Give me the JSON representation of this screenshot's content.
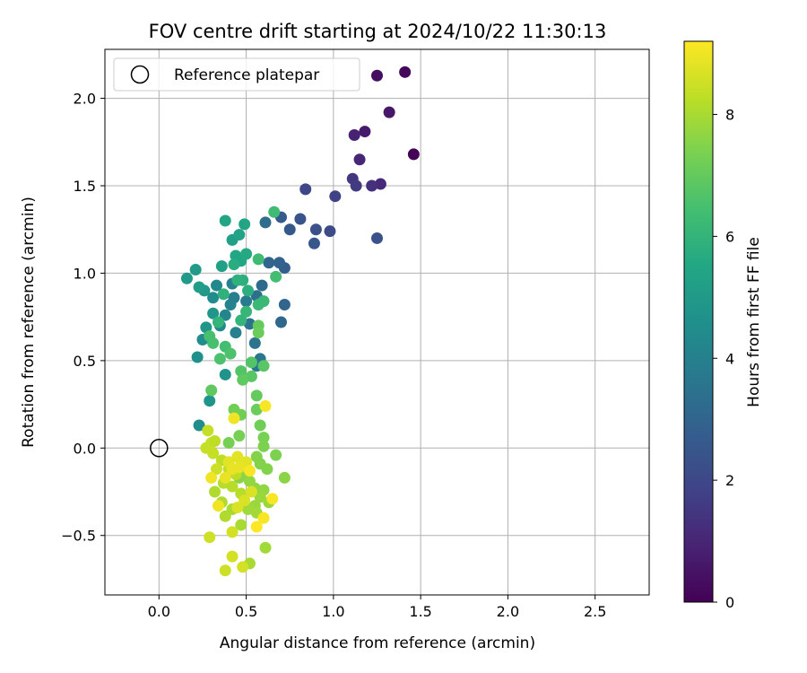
{
  "chart_data": {
    "type": "scatter",
    "title": "FOV centre drift starting at 2024/10/22 11:30:13",
    "xlabel": "Angular distance from reference (arcmin)",
    "ylabel": "Rotation from reference (arcmin)",
    "xlim": [
      -0.31,
      2.81
    ],
    "ylim": [
      -0.84,
      2.28
    ],
    "xticks": [
      0.0,
      0.5,
      1.0,
      1.5,
      2.0,
      2.5
    ],
    "xtick_labels": [
      "0.0",
      "0.5",
      "1.0",
      "1.5",
      "2.0",
      "2.5"
    ],
    "yticks": [
      -0.5,
      0.0,
      0.5,
      1.0,
      1.5,
      2.0
    ],
    "ytick_labels": [
      "−0.5",
      "0.0",
      "0.5",
      "1.0",
      "1.5",
      "2.0"
    ],
    "grid": true,
    "legend": {
      "placement": "top-left",
      "entries": [
        "Reference platepar"
      ]
    },
    "reference_point": {
      "x": 0.0,
      "y": 0.0
    },
    "colorbar": {
      "label": "Hours from first FF file",
      "range": [
        0,
        9.2
      ],
      "ticks": [
        0,
        2,
        4,
        6,
        8
      ],
      "tick_labels": [
        "0",
        "2",
        "4",
        "6",
        "8"
      ],
      "colormap": "viridis"
    },
    "points": [
      {
        "x": 1.46,
        "y": 1.68,
        "c": 0.1
      },
      {
        "x": 1.41,
        "y": 2.15,
        "c": 0.15
      },
      {
        "x": 1.25,
        "y": 2.13,
        "c": 0.35
      },
      {
        "x": 1.32,
        "y": 1.92,
        "c": 0.6
      },
      {
        "x": 1.18,
        "y": 1.81,
        "c": 0.7
      },
      {
        "x": 1.12,
        "y": 1.79,
        "c": 0.9
      },
      {
        "x": 1.15,
        "y": 1.65,
        "c": 1.0
      },
      {
        "x": 1.27,
        "y": 1.51,
        "c": 1.1
      },
      {
        "x": 1.22,
        "y": 1.5,
        "c": 1.3
      },
      {
        "x": 1.11,
        "y": 1.54,
        "c": 1.5
      },
      {
        "x": 1.13,
        "y": 1.5,
        "c": 1.6
      },
      {
        "x": 1.01,
        "y": 1.44,
        "c": 1.8
      },
      {
        "x": 0.84,
        "y": 1.48,
        "c": 2.0
      },
      {
        "x": 0.98,
        "y": 1.24,
        "c": 2.1
      },
      {
        "x": 1.25,
        "y": 1.2,
        "c": 2.3
      },
      {
        "x": 0.9,
        "y": 1.25,
        "c": 2.3
      },
      {
        "x": 0.81,
        "y": 1.31,
        "c": 2.4
      },
      {
        "x": 0.89,
        "y": 1.17,
        "c": 2.5
      },
      {
        "x": 0.75,
        "y": 1.25,
        "c": 2.6
      },
      {
        "x": 0.7,
        "y": 1.32,
        "c": 2.7
      },
      {
        "x": 0.72,
        "y": 1.03,
        "c": 2.8
      },
      {
        "x": 0.69,
        "y": 1.06,
        "c": 2.9
      },
      {
        "x": 0.63,
        "y": 1.06,
        "c": 3.0
      },
      {
        "x": 0.72,
        "y": 0.82,
        "c": 3.0
      },
      {
        "x": 0.7,
        "y": 0.72,
        "c": 3.1
      },
      {
        "x": 0.61,
        "y": 1.29,
        "c": 3.3
      },
      {
        "x": 0.59,
        "y": 0.93,
        "c": 3.2
      },
      {
        "x": 0.56,
        "y": 0.87,
        "c": 3.4
      },
      {
        "x": 0.55,
        "y": 0.6,
        "c": 3.5
      },
      {
        "x": 0.52,
        "y": 0.71,
        "c": 3.5
      },
      {
        "x": 0.58,
        "y": 0.51,
        "c": 3.6
      },
      {
        "x": 0.56,
        "y": 0.47,
        "c": 3.7
      },
      {
        "x": 0.5,
        "y": 0.84,
        "c": 3.8
      },
      {
        "x": 0.43,
        "y": 0.86,
        "c": 3.9
      },
      {
        "x": 0.42,
        "y": 0.94,
        "c": 4.0
      },
      {
        "x": 0.44,
        "y": 0.66,
        "c": 4.0
      },
      {
        "x": 0.41,
        "y": 0.82,
        "c": 4.1
      },
      {
        "x": 0.38,
        "y": 0.76,
        "c": 4.2
      },
      {
        "x": 0.35,
        "y": 0.7,
        "c": 4.3
      },
      {
        "x": 0.33,
        "y": 0.93,
        "c": 4.3
      },
      {
        "x": 0.31,
        "y": 0.86,
        "c": 4.4
      },
      {
        "x": 0.28,
        "y": 0.63,
        "c": 4.5
      },
      {
        "x": 0.25,
        "y": 0.62,
        "c": 4.5
      },
      {
        "x": 0.22,
        "y": 0.52,
        "c": 4.6
      },
      {
        "x": 0.23,
        "y": 0.13,
        "c": 4.5
      },
      {
        "x": 0.29,
        "y": 0.27,
        "c": 4.7
      },
      {
        "x": 0.38,
        "y": 0.42,
        "c": 4.7
      },
      {
        "x": 0.27,
        "y": 0.69,
        "c": 4.8
      },
      {
        "x": 0.31,
        "y": 0.77,
        "c": 4.8
      },
      {
        "x": 0.26,
        "y": 0.9,
        "c": 4.9
      },
      {
        "x": 0.21,
        "y": 1.02,
        "c": 5.0
      },
      {
        "x": 0.16,
        "y": 0.97,
        "c": 5.0
      },
      {
        "x": 0.23,
        "y": 0.92,
        "c": 5.1
      },
      {
        "x": 0.36,
        "y": 1.04,
        "c": 5.2
      },
      {
        "x": 0.42,
        "y": 1.19,
        "c": 5.2
      },
      {
        "x": 0.46,
        "y": 1.22,
        "c": 5.3
      },
      {
        "x": 0.38,
        "y": 1.3,
        "c": 5.4
      },
      {
        "x": 0.49,
        "y": 1.28,
        "c": 5.4
      },
      {
        "x": 0.44,
        "y": 1.1,
        "c": 5.5
      },
      {
        "x": 0.47,
        "y": 1.07,
        "c": 5.5
      },
      {
        "x": 0.5,
        "y": 1.11,
        "c": 5.6
      },
      {
        "x": 0.43,
        "y": 1.05,
        "c": 5.7
      },
      {
        "x": 0.48,
        "y": 0.96,
        "c": 5.8
      },
      {
        "x": 0.51,
        "y": 0.9,
        "c": 5.8
      },
      {
        "x": 0.45,
        "y": 0.96,
        "c": 5.9
      },
      {
        "x": 0.37,
        "y": 0.88,
        "c": 5.9
      },
      {
        "x": 0.34,
        "y": 0.72,
        "c": 6.0
      },
      {
        "x": 0.47,
        "y": 0.73,
        "c": 6.0
      },
      {
        "x": 0.5,
        "y": 0.78,
        "c": 6.1
      },
      {
        "x": 0.57,
        "y": 0.82,
        "c": 6.2
      },
      {
        "x": 0.6,
        "y": 0.84,
        "c": 6.2
      },
      {
        "x": 0.66,
        "y": 1.35,
        "c": 6.3
      },
      {
        "x": 0.57,
        "y": 1.08,
        "c": 6.3
      },
      {
        "x": 0.67,
        "y": 0.98,
        "c": 6.4
      },
      {
        "x": 0.38,
        "y": 0.58,
        "c": 6.4
      },
      {
        "x": 0.31,
        "y": 0.6,
        "c": 6.5
      },
      {
        "x": 0.29,
        "y": 0.64,
        "c": 6.5
      },
      {
        "x": 0.41,
        "y": 0.54,
        "c": 6.6
      },
      {
        "x": 0.35,
        "y": 0.51,
        "c": 6.6
      },
      {
        "x": 0.47,
        "y": 0.44,
        "c": 6.7
      },
      {
        "x": 0.53,
        "y": 0.49,
        "c": 6.7
      },
      {
        "x": 0.6,
        "y": 0.47,
        "c": 6.8
      },
      {
        "x": 0.53,
        "y": 0.41,
        "c": 6.8
      },
      {
        "x": 0.48,
        "y": 0.39,
        "c": 6.9
      },
      {
        "x": 0.3,
        "y": 0.33,
        "c": 6.9
      },
      {
        "x": 0.56,
        "y": 0.3,
        "c": 7.0
      },
      {
        "x": 0.57,
        "y": 0.7,
        "c": 7.0
      },
      {
        "x": 0.57,
        "y": 0.66,
        "c": 7.1
      },
      {
        "x": 0.56,
        "y": 0.22,
        "c": 7.1
      },
      {
        "x": 0.43,
        "y": 0.22,
        "c": 7.2
      },
      {
        "x": 0.47,
        "y": 0.19,
        "c": 7.2
      },
      {
        "x": 0.58,
        "y": 0.13,
        "c": 7.2
      },
      {
        "x": 0.6,
        "y": 0.06,
        "c": 7.3
      },
      {
        "x": 0.46,
        "y": 0.07,
        "c": 7.3
      },
      {
        "x": 0.4,
        "y": 0.03,
        "c": 7.3
      },
      {
        "x": 0.6,
        "y": 0.01,
        "c": 7.4
      },
      {
        "x": 0.67,
        "y": -0.04,
        "c": 7.4
      },
      {
        "x": 0.56,
        "y": -0.05,
        "c": 7.5
      },
      {
        "x": 0.58,
        "y": -0.09,
        "c": 7.5
      },
      {
        "x": 0.62,
        "y": -0.12,
        "c": 7.5
      },
      {
        "x": 0.72,
        "y": -0.17,
        "c": 7.6
      },
      {
        "x": 0.5,
        "y": -0.14,
        "c": 7.6
      },
      {
        "x": 0.46,
        "y": -0.17,
        "c": 7.6
      },
      {
        "x": 0.52,
        "y": -0.19,
        "c": 7.7
      },
      {
        "x": 0.55,
        "y": -0.23,
        "c": 7.7
      },
      {
        "x": 0.6,
        "y": -0.24,
        "c": 7.7
      },
      {
        "x": 0.58,
        "y": -0.28,
        "c": 7.8
      },
      {
        "x": 0.63,
        "y": -0.31,
        "c": 7.8
      },
      {
        "x": 0.55,
        "y": -0.33,
        "c": 7.8
      },
      {
        "x": 0.51,
        "y": -0.35,
        "c": 7.9
      },
      {
        "x": 0.56,
        "y": -0.37,
        "c": 7.9
      },
      {
        "x": 0.61,
        "y": -0.57,
        "c": 7.9
      },
      {
        "x": 0.52,
        "y": -0.66,
        "c": 8.0
      },
      {
        "x": 0.47,
        "y": -0.44,
        "c": 8.0
      },
      {
        "x": 0.42,
        "y": -0.35,
        "c": 8.0
      },
      {
        "x": 0.38,
        "y": -0.39,
        "c": 8.1
      },
      {
        "x": 0.36,
        "y": -0.31,
        "c": 8.1
      },
      {
        "x": 0.32,
        "y": -0.25,
        "c": 8.1
      },
      {
        "x": 0.37,
        "y": -0.2,
        "c": 8.2
      },
      {
        "x": 0.42,
        "y": -0.22,
        "c": 8.2
      },
      {
        "x": 0.47,
        "y": -0.26,
        "c": 8.2
      },
      {
        "x": 0.44,
        "y": -0.15,
        "c": 8.3
      },
      {
        "x": 0.4,
        "y": -0.12,
        "c": 8.3
      },
      {
        "x": 0.36,
        "y": -0.07,
        "c": 8.3
      },
      {
        "x": 0.31,
        "y": -0.03,
        "c": 8.4
      },
      {
        "x": 0.27,
        "y": 0.0,
        "c": 8.4
      },
      {
        "x": 0.3,
        "y": 0.03,
        "c": 8.4
      },
      {
        "x": 0.33,
        "y": -0.12,
        "c": 8.5
      },
      {
        "x": 0.29,
        "y": -0.51,
        "c": 8.5
      },
      {
        "x": 0.38,
        "y": -0.7,
        "c": 8.5
      },
      {
        "x": 0.42,
        "y": -0.62,
        "c": 8.6
      },
      {
        "x": 0.48,
        "y": -0.68,
        "c": 8.6
      },
      {
        "x": 0.42,
        "y": -0.48,
        "c": 8.6
      },
      {
        "x": 0.45,
        "y": -0.34,
        "c": 8.7
      },
      {
        "x": 0.49,
        "y": -0.3,
        "c": 8.7
      },
      {
        "x": 0.53,
        "y": -0.25,
        "c": 8.7
      },
      {
        "x": 0.5,
        "y": -0.08,
        "c": 8.8
      },
      {
        "x": 0.45,
        "y": -0.05,
        "c": 8.8
      },
      {
        "x": 0.4,
        "y": -0.08,
        "c": 8.8
      },
      {
        "x": 0.42,
        "y": -0.12,
        "c": 8.9
      },
      {
        "x": 0.46,
        "y": -0.11,
        "c": 8.9
      },
      {
        "x": 0.38,
        "y": -0.17,
        "c": 8.9
      },
      {
        "x": 0.3,
        "y": -0.17,
        "c": 9.0
      },
      {
        "x": 0.34,
        "y": -0.33,
        "c": 9.0
      },
      {
        "x": 0.43,
        "y": 0.17,
        "c": 9.0
      },
      {
        "x": 0.61,
        "y": 0.24,
        "c": 9.1
      },
      {
        "x": 0.52,
        "y": -0.13,
        "c": 9.1
      },
      {
        "x": 0.65,
        "y": -0.29,
        "c": 9.1
      },
      {
        "x": 0.6,
        "y": -0.4,
        "c": 9.1
      },
      {
        "x": 0.56,
        "y": -0.45,
        "c": 9.2
      },
      {
        "x": 0.28,
        "y": 0.1,
        "c": 8.4
      },
      {
        "x": 0.32,
        "y": 0.04,
        "c": 8.3
      }
    ]
  }
}
